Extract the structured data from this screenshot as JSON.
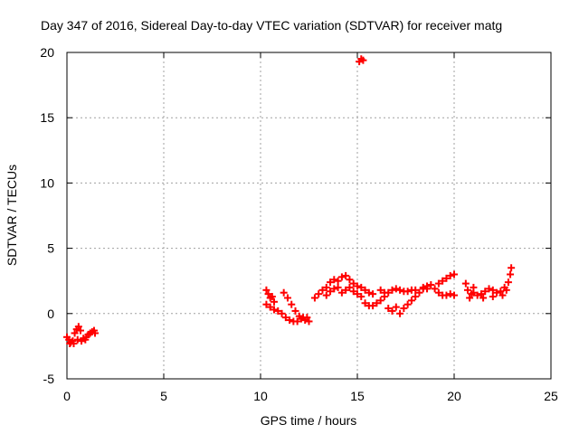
{
  "chart_data": {
    "type": "scatter",
    "title": "Day 347 of 2016, Sidereal Day-to-day VTEC variation (SDTVAR) for receiver matg",
    "xlabel": "GPS time / hours",
    "ylabel": "SDTVAR / TECUs",
    "xlim": [
      0,
      25
    ],
    "ylim": [
      -5,
      20
    ],
    "xticks": [
      "0",
      "5",
      "10",
      "15",
      "20",
      "25"
    ],
    "yticks": [
      "-5",
      "0",
      "5",
      "10",
      "15",
      "20"
    ],
    "grid": true,
    "series": [
      {
        "color": "#ff0000",
        "marker": "plus",
        "points": [
          [
            0.0,
            -1.8
          ],
          [
            0.1,
            -2.0
          ],
          [
            0.2,
            -2.2
          ],
          [
            0.3,
            -2.1
          ],
          [
            0.4,
            -1.5
          ],
          [
            0.5,
            -1.2
          ],
          [
            0.6,
            -1.0
          ],
          [
            0.7,
            -1.3
          ],
          [
            0.15,
            -2.3
          ],
          [
            0.35,
            -2.3
          ],
          [
            0.55,
            -2.0
          ],
          [
            0.75,
            -2.1
          ],
          [
            0.85,
            -1.9
          ],
          [
            1.0,
            -1.8
          ],
          [
            1.1,
            -1.6
          ],
          [
            1.2,
            -1.5
          ],
          [
            1.3,
            -1.4
          ],
          [
            1.4,
            -1.3
          ],
          [
            1.45,
            -1.5
          ],
          [
            0.95,
            -2.0
          ],
          [
            10.3,
            1.8
          ],
          [
            10.4,
            1.5
          ],
          [
            10.5,
            1.2
          ],
          [
            10.6,
            1.3
          ],
          [
            10.7,
            0.9
          ],
          [
            10.3,
            0.7
          ],
          [
            10.5,
            0.5
          ],
          [
            10.7,
            0.3
          ],
          [
            10.9,
            0.2
          ],
          [
            11.1,
            0.0
          ],
          [
            11.3,
            -0.3
          ],
          [
            11.5,
            -0.5
          ],
          [
            11.7,
            -0.6
          ],
          [
            11.9,
            -0.6
          ],
          [
            12.1,
            -0.4
          ],
          [
            12.3,
            -0.5
          ],
          [
            12.5,
            -0.6
          ],
          [
            11.2,
            1.6
          ],
          [
            11.4,
            1.2
          ],
          [
            11.6,
            0.7
          ],
          [
            11.8,
            0.2
          ],
          [
            12.0,
            -0.2
          ],
          [
            12.2,
            -0.3
          ],
          [
            12.4,
            -0.3
          ],
          [
            12.8,
            1.2
          ],
          [
            13.0,
            1.5
          ],
          [
            13.2,
            1.8
          ],
          [
            13.4,
            2.0
          ],
          [
            13.6,
            2.4
          ],
          [
            13.8,
            2.6
          ],
          [
            14.0,
            2.5
          ],
          [
            14.2,
            2.8
          ],
          [
            14.4,
            2.9
          ],
          [
            14.6,
            2.6
          ],
          [
            14.8,
            2.3
          ],
          [
            15.0,
            2.1
          ],
          [
            15.2,
            2.0
          ],
          [
            15.4,
            1.8
          ],
          [
            15.6,
            1.6
          ],
          [
            15.8,
            1.5
          ],
          [
            13.4,
            1.4
          ],
          [
            13.6,
            1.7
          ],
          [
            13.8,
            1.9
          ],
          [
            14.0,
            2.0
          ],
          [
            14.2,
            1.6
          ],
          [
            14.4,
            1.8
          ],
          [
            14.6,
            2.0
          ],
          [
            14.8,
            1.7
          ],
          [
            15.0,
            1.5
          ],
          [
            15.2,
            1.3
          ],
          [
            15.4,
            0.8
          ],
          [
            15.6,
            0.6
          ],
          [
            15.8,
            0.6
          ],
          [
            16.0,
            0.8
          ],
          [
            16.2,
            1.0
          ],
          [
            16.4,
            1.3
          ],
          [
            16.6,
            1.6
          ],
          [
            16.8,
            1.8
          ],
          [
            17.0,
            1.9
          ],
          [
            17.2,
            1.8
          ],
          [
            17.4,
            1.7
          ],
          [
            17.6,
            1.7
          ],
          [
            17.8,
            1.8
          ],
          [
            18.0,
            1.8
          ],
          [
            16.2,
            1.8
          ],
          [
            16.4,
            1.6
          ],
          [
            16.6,
            0.4
          ],
          [
            16.8,
            0.2
          ],
          [
            17.0,
            0.5
          ],
          [
            17.2,
            0.0
          ],
          [
            17.4,
            0.4
          ],
          [
            17.6,
            0.7
          ],
          [
            17.8,
            1.0
          ],
          [
            18.0,
            1.3
          ],
          [
            18.2,
            1.6
          ],
          [
            18.4,
            1.9
          ],
          [
            18.6,
            2.1
          ],
          [
            18.8,
            2.2
          ],
          [
            19.0,
            1.9
          ],
          [
            19.2,
            1.6
          ],
          [
            19.4,
            1.4
          ],
          [
            19.6,
            1.4
          ],
          [
            19.8,
            1.5
          ],
          [
            20.0,
            1.4
          ],
          [
            19.2,
            2.3
          ],
          [
            19.4,
            2.5
          ],
          [
            19.6,
            2.7
          ],
          [
            19.8,
            2.9
          ],
          [
            20.0,
            3.0
          ],
          [
            18.4,
            2.0
          ],
          [
            18.6,
            1.9
          ],
          [
            15.1,
            19.3
          ],
          [
            15.2,
            19.5
          ],
          [
            15.3,
            19.4
          ],
          [
            20.6,
            2.3
          ],
          [
            20.7,
            1.8
          ],
          [
            20.8,
            1.2
          ],
          [
            20.9,
            1.5
          ],
          [
            21.0,
            1.6
          ],
          [
            21.2,
            1.4
          ],
          [
            21.4,
            1.5
          ],
          [
            21.6,
            1.7
          ],
          [
            21.8,
            1.9
          ],
          [
            22.0,
            1.8
          ],
          [
            22.2,
            1.6
          ],
          [
            22.4,
            1.7
          ],
          [
            22.6,
            2.0
          ],
          [
            22.8,
            2.4
          ],
          [
            22.9,
            3.0
          ],
          [
            22.95,
            3.5
          ],
          [
            21.0,
            2.0
          ],
          [
            21.5,
            1.2
          ],
          [
            22.0,
            1.3
          ],
          [
            22.5,
            1.4
          ],
          [
            22.7,
            1.8
          ]
        ]
      }
    ]
  }
}
